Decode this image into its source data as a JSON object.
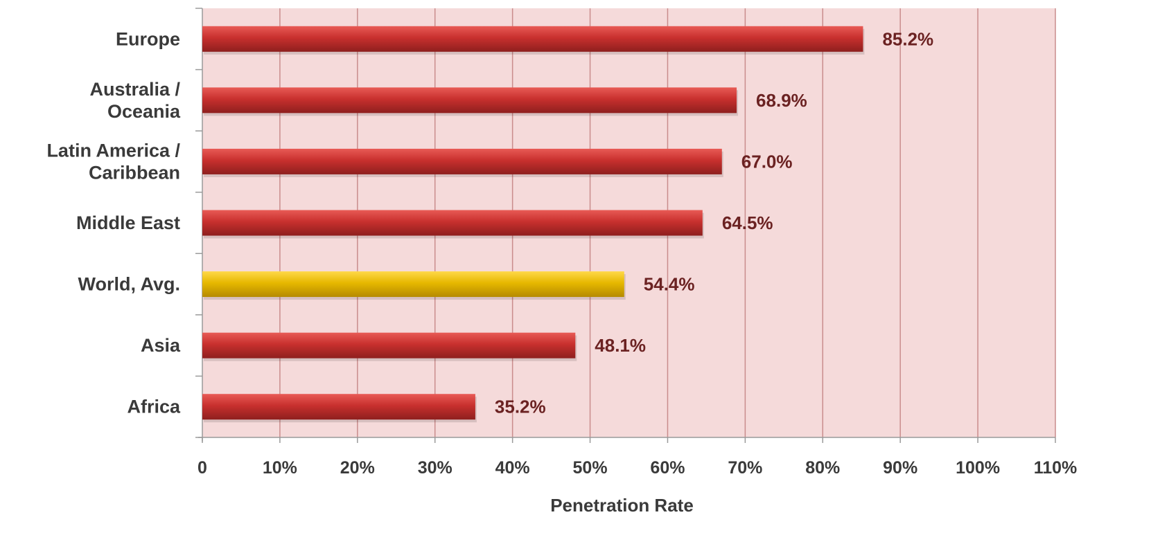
{
  "chart_data": {
    "type": "bar",
    "orientation": "horizontal",
    "title": "",
    "xlabel": "Penetration Rate",
    "ylabel": "",
    "xlim": [
      0,
      110
    ],
    "grid": true,
    "legend": "none",
    "categories": [
      [
        "Europe"
      ],
      [
        "Australia /",
        "Oceania"
      ],
      [
        "Latin America /",
        "Caribbean"
      ],
      [
        "Middle East"
      ],
      [
        "World, Avg."
      ],
      [
        "Asia"
      ],
      [
        "Africa"
      ]
    ],
    "values": [
      85.2,
      68.9,
      67.0,
      64.5,
      54.4,
      48.1,
      35.2
    ],
    "value_labels": [
      "85.2%",
      "68.9%",
      "67.0%",
      "64.5%",
      "54.4%",
      "48.1%",
      "35.2%"
    ],
    "highlight": "World, Avg.",
    "ticks": [
      {
        "value": 0,
        "label": "0"
      },
      {
        "value": 10,
        "label": "10%"
      },
      {
        "value": 20,
        "label": "20%"
      },
      {
        "value": 30,
        "label": "30%"
      },
      {
        "value": 40,
        "label": "40%"
      },
      {
        "value": 50,
        "label": "50%"
      },
      {
        "value": 60,
        "label": "60%"
      },
      {
        "value": 70,
        "label": "70%"
      },
      {
        "value": 80,
        "label": "80%"
      },
      {
        "value": 90,
        "label": "90%"
      },
      {
        "value": 100,
        "label": "100%"
      },
      {
        "value": 110,
        "label": "110%"
      }
    ],
    "colors": {
      "plot_background": "#f5dada",
      "gridline": "#c98c8c",
      "bar": "#c8302e",
      "bar_highlight": "#e6b800"
    }
  }
}
